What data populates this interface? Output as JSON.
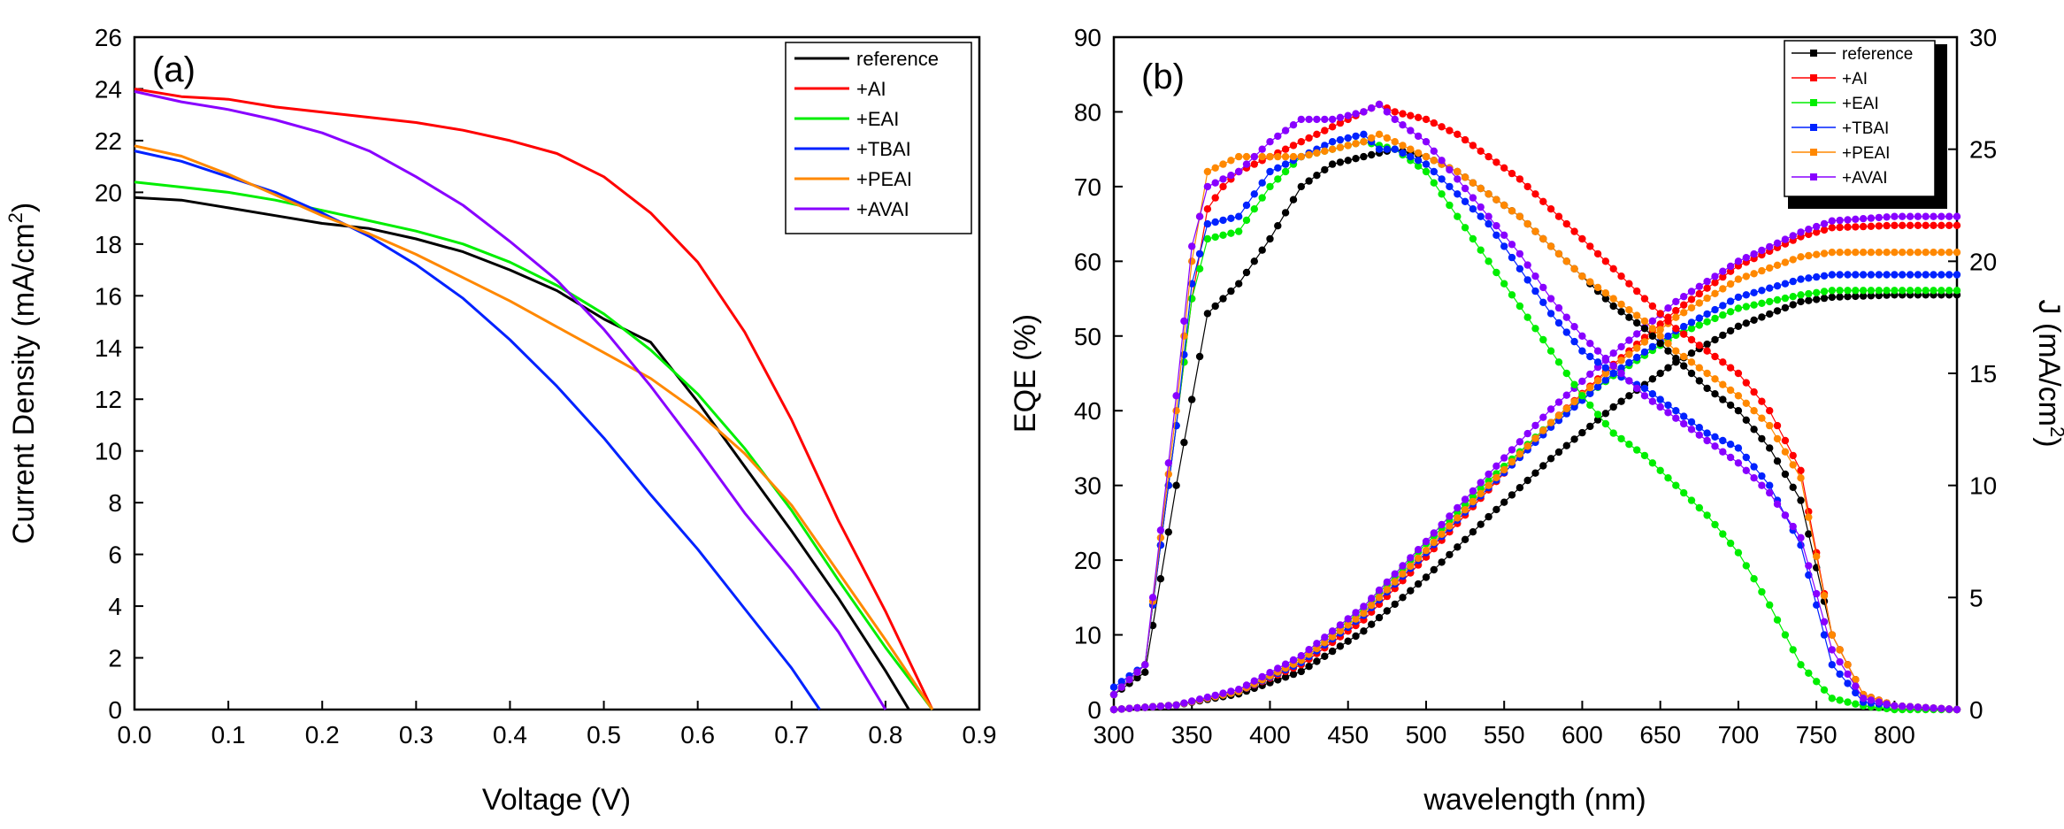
{
  "chart_data": [
    {
      "type": "line",
      "panel_label": "(a)",
      "xlabel": "Voltage (V)",
      "ylabel_main": "Current Density (mA/cm",
      "ylabel_sup": "2",
      "ylabel_tail": ")",
      "xlim": [
        0.0,
        0.9
      ],
      "ylim": [
        0,
        26
      ],
      "xticks": [
        "0.0",
        "0.1",
        "0.2",
        "0.3",
        "0.4",
        "0.5",
        "0.6",
        "0.7",
        "0.8",
        "0.9"
      ],
      "yticks": [
        "0",
        "2",
        "4",
        "6",
        "8",
        "10",
        "12",
        "14",
        "16",
        "18",
        "20",
        "22",
        "24",
        "26"
      ],
      "legend_position": "top-right",
      "series": [
        {
          "name": "reference",
          "color": "#000000",
          "x": [
            0,
            0.05,
            0.1,
            0.15,
            0.2,
            0.25,
            0.3,
            0.35,
            0.4,
            0.45,
            0.5,
            0.55,
            0.6,
            0.65,
            0.7,
            0.75,
            0.8,
            0.825
          ],
          "y": [
            19.8,
            19.7,
            19.4,
            19.1,
            18.8,
            18.6,
            18.2,
            17.7,
            17.0,
            16.2,
            15.1,
            14.2,
            11.9,
            9.4,
            6.9,
            4.3,
            1.5,
            0
          ]
        },
        {
          "name": "+AI",
          "color": "#ff0000",
          "x": [
            0,
            0.05,
            0.1,
            0.15,
            0.2,
            0.25,
            0.3,
            0.35,
            0.4,
            0.45,
            0.5,
            0.55,
            0.6,
            0.65,
            0.7,
            0.75,
            0.8,
            0.85
          ],
          "y": [
            24.0,
            23.7,
            23.6,
            23.3,
            23.1,
            22.9,
            22.7,
            22.4,
            22.0,
            21.5,
            20.6,
            19.2,
            17.3,
            14.6,
            11.2,
            7.3,
            3.8,
            0
          ]
        },
        {
          "name": "+EAI",
          "color": "#00ee00",
          "x": [
            0,
            0.05,
            0.1,
            0.15,
            0.2,
            0.25,
            0.3,
            0.35,
            0.4,
            0.45,
            0.5,
            0.55,
            0.6,
            0.65,
            0.7,
            0.75,
            0.8,
            0.85
          ],
          "y": [
            20.4,
            20.2,
            20.0,
            19.7,
            19.3,
            18.9,
            18.5,
            18.0,
            17.3,
            16.4,
            15.3,
            13.9,
            12.2,
            10.1,
            7.7,
            5.0,
            2.4,
            0
          ]
        },
        {
          "name": "+TBAI",
          "color": "#0022ff",
          "x": [
            0,
            0.05,
            0.1,
            0.15,
            0.2,
            0.25,
            0.3,
            0.35,
            0.4,
            0.45,
            0.5,
            0.55,
            0.6,
            0.65,
            0.7,
            0.73
          ],
          "y": [
            21.6,
            21.2,
            20.6,
            20.0,
            19.2,
            18.3,
            17.2,
            15.9,
            14.3,
            12.5,
            10.5,
            8.3,
            6.2,
            3.9,
            1.6,
            0
          ]
        },
        {
          "name": "+PEAI",
          "color": "#ff8800",
          "x": [
            0,
            0.05,
            0.1,
            0.15,
            0.2,
            0.25,
            0.3,
            0.35,
            0.4,
            0.45,
            0.5,
            0.55,
            0.6,
            0.65,
            0.7,
            0.75,
            0.8,
            0.85
          ],
          "y": [
            21.8,
            21.4,
            20.7,
            19.9,
            19.1,
            18.4,
            17.6,
            16.7,
            15.8,
            14.8,
            13.8,
            12.8,
            11.5,
            9.9,
            7.9,
            5.3,
            2.7,
            0
          ]
        },
        {
          "name": "+AVAI",
          "color": "#8800ff",
          "x": [
            0,
            0.05,
            0.1,
            0.15,
            0.2,
            0.25,
            0.3,
            0.35,
            0.4,
            0.45,
            0.5,
            0.55,
            0.6,
            0.65,
            0.7,
            0.75,
            0.8
          ],
          "y": [
            23.9,
            23.5,
            23.2,
            22.8,
            22.3,
            21.6,
            20.6,
            19.5,
            18.1,
            16.6,
            14.7,
            12.5,
            10.1,
            7.6,
            5.4,
            3.0,
            0
          ]
        }
      ]
    },
    {
      "type": "scatter",
      "panel_label": "(b)",
      "xlabel": "wavelength (nm)",
      "ylabel_left": "EQE (%)",
      "ylabel_right_main": "J (mA/cm",
      "ylabel_right_sup": "2",
      "ylabel_right_tail": ")",
      "xlim": [
        300,
        840
      ],
      "ylim_left": [
        0,
        90
      ],
      "ylim_right": [
        0,
        30
      ],
      "xticks": [
        "300",
        "350",
        "400",
        "450",
        "500",
        "550",
        "600",
        "650",
        "700",
        "750",
        "800"
      ],
      "yticks_left": [
        "0",
        "10",
        "20",
        "30",
        "40",
        "50",
        "60",
        "70",
        "80",
        "90"
      ],
      "yticks_right": [
        "0",
        "5",
        "10",
        "15",
        "20",
        "25",
        "30"
      ],
      "legend_position": "top-right",
      "eqe_series": [
        {
          "name": "reference",
          "color": "#000000",
          "x": [
            300,
            320,
            340,
            360,
            370,
            380,
            400,
            420,
            440,
            460,
            480,
            500,
            520,
            540,
            560,
            580,
            600,
            620,
            640,
            660,
            680,
            700,
            720,
            740,
            760,
            780,
            800,
            840
          ],
          "y": [
            2,
            5,
            30,
            53,
            55,
            57,
            63,
            70,
            73,
            74,
            75,
            74,
            72,
            69,
            66,
            62,
            58,
            54,
            51,
            47,
            43,
            40,
            35,
            28,
            10,
            2,
            0.5,
            0
          ]
        },
        {
          "name": "+AI",
          "color": "#ff0000",
          "x": [
            300,
            320,
            340,
            350,
            360,
            370,
            380,
            400,
            420,
            440,
            460,
            470,
            480,
            500,
            520,
            540,
            560,
            580,
            600,
            620,
            640,
            660,
            680,
            700,
            720,
            740,
            760,
            780,
            800,
            840
          ],
          "y": [
            2,
            6,
            38,
            55,
            67,
            70,
            72,
            74,
            76,
            78,
            80,
            81,
            80,
            79,
            77,
            74,
            71,
            67,
            63,
            59,
            55,
            51,
            48,
            45,
            40,
            32,
            10,
            2,
            0.5,
            0
          ]
        },
        {
          "name": "+EAI",
          "color": "#00ee00",
          "x": [
            300,
            320,
            340,
            350,
            360,
            380,
            400,
            420,
            440,
            460,
            480,
            500,
            520,
            540,
            560,
            580,
            600,
            620,
            640,
            660,
            680,
            700,
            720,
            740,
            760,
            780,
            800,
            840
          ],
          "y": [
            2,
            6,
            38,
            55,
            63,
            64,
            70,
            74,
            75,
            76,
            75,
            72,
            66,
            60,
            54,
            48,
            42,
            37,
            34,
            30,
            26,
            21,
            14,
            6,
            1.5,
            0.5,
            0,
            0
          ]
        },
        {
          "name": "+TBAI",
          "color": "#0022ff",
          "x": [
            300,
            320,
            340,
            350,
            360,
            380,
            400,
            420,
            440,
            460,
            470,
            480,
            500,
            520,
            540,
            560,
            580,
            600,
            620,
            640,
            660,
            680,
            700,
            720,
            740,
            760,
            780,
            800,
            840
          ],
          "y": [
            3,
            6,
            38,
            57,
            65,
            66,
            72,
            74,
            76,
            77,
            75,
            75,
            73,
            69,
            65,
            59,
            53,
            48,
            45,
            43,
            40,
            37,
            35,
            30,
            22,
            6,
            1,
            0.5,
            0
          ]
        },
        {
          "name": "+PEAI",
          "color": "#ff8800",
          "x": [
            300,
            320,
            340,
            350,
            360,
            370,
            380,
            400,
            420,
            440,
            460,
            470,
            480,
            500,
            520,
            540,
            560,
            580,
            600,
            620,
            640,
            660,
            680,
            700,
            720,
            740,
            760,
            780,
            800,
            840
          ],
          "y": [
            2,
            6,
            40,
            60,
            72,
            73,
            74,
            74,
            74,
            75,
            76,
            77,
            76,
            74,
            72,
            69,
            66,
            62,
            58,
            55,
            52,
            48,
            45,
            42,
            38,
            31,
            10,
            2,
            0.5,
            0
          ]
        },
        {
          "name": "+AVAI",
          "color": "#8800ff",
          "x": [
            300,
            320,
            340,
            350,
            360,
            380,
            400,
            420,
            440,
            460,
            470,
            480,
            500,
            520,
            540,
            560,
            580,
            600,
            620,
            640,
            660,
            680,
            700,
            720,
            740,
            760,
            780,
            800,
            840
          ],
          "y": [
            2,
            6,
            42,
            62,
            70,
            72,
            76,
            79,
            79,
            80,
            81,
            79,
            76,
            71,
            66,
            61,
            55,
            50,
            46,
            42,
            39,
            36,
            33,
            29,
            23,
            8,
            1.5,
            0.5,
            0
          ]
        }
      ],
      "j_series": [
        {
          "name": "reference",
          "color": "#000000",
          "x": [
            300,
            340,
            380,
            420,
            460,
            500,
            540,
            580,
            620,
            660,
            700,
            740,
            760,
            800,
            840
          ],
          "y": [
            0,
            0.2,
            0.7,
            1.7,
            3.5,
            5.9,
            8.6,
            11.2,
            13.5,
            15.5,
            17.1,
            18.2,
            18.4,
            18.5,
            18.5
          ]
        },
        {
          "name": "+AI",
          "color": "#ff0000",
          "x": [
            300,
            340,
            380,
            420,
            460,
            500,
            540,
            580,
            620,
            660,
            700,
            740,
            760,
            800,
            840
          ],
          "y": [
            0,
            0.2,
            0.8,
            2.0,
            4.0,
            6.8,
            9.8,
            12.8,
            15.4,
            17.8,
            19.8,
            21.1,
            21.5,
            21.6,
            21.6
          ]
        },
        {
          "name": "+EAI",
          "color": "#00ee00",
          "x": [
            300,
            340,
            380,
            420,
            460,
            500,
            540,
            580,
            620,
            660,
            700,
            740,
            760,
            800,
            840
          ],
          "y": [
            0,
            0.2,
            0.8,
            2.3,
            4.5,
            7.4,
            10.2,
            12.8,
            14.9,
            16.7,
            17.9,
            18.5,
            18.7,
            18.7,
            18.7
          ]
        },
        {
          "name": "+TBAI",
          "color": "#0022ff",
          "x": [
            300,
            340,
            380,
            420,
            460,
            500,
            540,
            580,
            620,
            660,
            700,
            740,
            760,
            800,
            840
          ],
          "y": [
            0,
            0.2,
            0.8,
            2.1,
            4.2,
            7.0,
            9.9,
            12.6,
            15.0,
            16.9,
            18.4,
            19.2,
            19.4,
            19.4,
            19.4
          ]
        },
        {
          "name": "+PEAI",
          "color": "#ff8800",
          "x": [
            300,
            340,
            380,
            420,
            460,
            500,
            540,
            580,
            620,
            660,
            700,
            740,
            760,
            800,
            840
          ],
          "y": [
            0,
            0.2,
            0.8,
            2.2,
            4.3,
            7.1,
            10.0,
            12.8,
            15.3,
            17.5,
            19.2,
            20.2,
            20.4,
            20.4,
            20.4
          ]
        },
        {
          "name": "+AVAI",
          "color": "#8800ff",
          "x": [
            300,
            340,
            380,
            420,
            460,
            500,
            540,
            580,
            620,
            660,
            700,
            740,
            760,
            800,
            840
          ],
          "y": [
            0,
            0.2,
            0.9,
            2.4,
            4.6,
            7.5,
            10.5,
            13.4,
            15.9,
            18.2,
            20.0,
            21.3,
            21.8,
            22.0,
            22.0
          ]
        }
      ]
    }
  ]
}
